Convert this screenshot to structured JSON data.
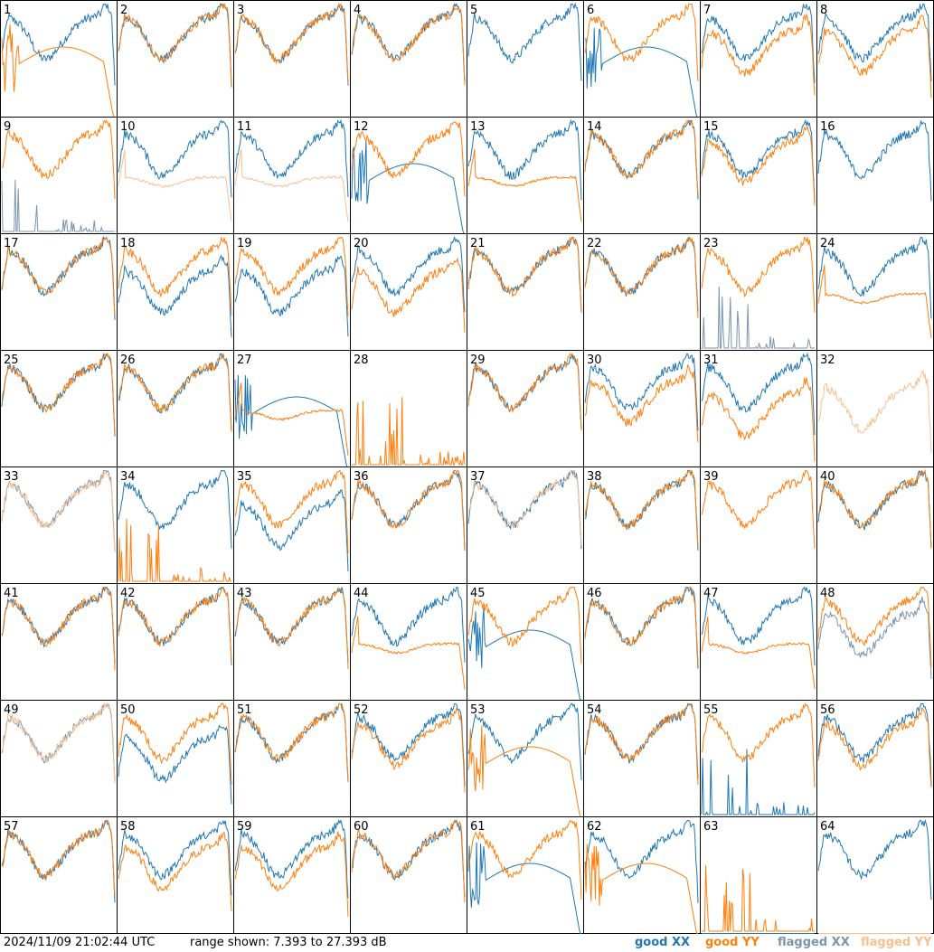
{
  "colors": {
    "good_xx": "#1f77b4",
    "good_yy": "#ff7f0e",
    "flagged_xx": "#7a96ad",
    "flagged_yy": "#f9bf8f",
    "border": "#000000"
  },
  "footer": {
    "timestamp": "2024/11/09 21:02:44 UTC",
    "range": "range shown: 7.393 to 27.393 dB"
  },
  "legend": {
    "good_xx": "good XX",
    "good_yy": "good YY",
    "flagged_xx": "flagged XX",
    "flagged_yy": "flagged YY"
  },
  "chart_data": {
    "type": "line",
    "layout": "8x8 small multiples",
    "range_db": [
      7.393,
      27.393
    ],
    "panels": [
      {
        "label": "1",
        "xx": "good",
        "yy": "good",
        "xx_shape": "normal",
        "yy_shape": "dipcurve",
        "off": [
          0,
          0
        ]
      },
      {
        "label": "2",
        "xx": "good",
        "yy": "good",
        "xx_shape": "normal",
        "yy_shape": "normal",
        "off": [
          0,
          0
        ]
      },
      {
        "label": "3",
        "xx": "good",
        "yy": "good",
        "xx_shape": "normal",
        "yy_shape": "normal",
        "off": [
          0,
          0
        ]
      },
      {
        "label": "4",
        "xx": "good",
        "yy": "good",
        "xx_shape": "normal",
        "yy_shape": "normal",
        "off": [
          0,
          0
        ]
      },
      {
        "label": "5",
        "xx": "good",
        "yy": "flagged",
        "xx_shape": "normal",
        "yy_shape": "dead",
        "off": [
          0,
          0
        ]
      },
      {
        "label": "6",
        "xx": "good",
        "yy": "good",
        "xx_shape": "dipcurve",
        "yy_shape": "normal",
        "off": [
          0,
          0
        ]
      },
      {
        "label": "7",
        "xx": "good",
        "yy": "good",
        "xx_shape": "normal",
        "yy_shape": "normal",
        "off": [
          0,
          2
        ]
      },
      {
        "label": "8",
        "xx": "good",
        "yy": "good",
        "xx_shape": "normal",
        "yy_shape": "normal",
        "off": [
          0,
          2
        ]
      },
      {
        "label": "9",
        "xx": "flagged",
        "yy": "good",
        "xx_shape": "spiky",
        "yy_shape": "normal",
        "off": [
          0,
          0
        ]
      },
      {
        "label": "10",
        "xx": "good",
        "yy": "flagged",
        "xx_shape": "normal",
        "yy_shape": "flat",
        "off": [
          0,
          1
        ]
      },
      {
        "label": "11",
        "xx": "good",
        "yy": "flagged",
        "xx_shape": "normal",
        "yy_shape": "flat",
        "off": [
          0,
          2
        ]
      },
      {
        "label": "12",
        "xx": "good",
        "yy": "good",
        "xx_shape": "dipcurve",
        "yy_shape": "normal",
        "off": [
          0,
          0
        ]
      },
      {
        "label": "13",
        "xx": "good",
        "yy": "good",
        "xx_shape": "normal",
        "yy_shape": "flat",
        "off": [
          0,
          2
        ]
      },
      {
        "label": "14",
        "xx": "good",
        "yy": "good",
        "xx_shape": "normal",
        "yy_shape": "normal",
        "off": [
          0,
          0
        ]
      },
      {
        "label": "15",
        "xx": "good",
        "yy": "good",
        "xx_shape": "normal",
        "yy_shape": "normal",
        "off": [
          0,
          1
        ]
      },
      {
        "label": "16",
        "xx": "good",
        "yy": "flagged",
        "xx_shape": "normal",
        "yy_shape": "dead",
        "off": [
          0,
          0
        ]
      },
      {
        "label": "17",
        "xx": "good",
        "yy": "good",
        "xx_shape": "normal",
        "yy_shape": "normal",
        "off": [
          0,
          0
        ]
      },
      {
        "label": "18",
        "xx": "good",
        "yy": "good",
        "xx_shape": "normal",
        "yy_shape": "normal",
        "off": [
          3,
          0
        ]
      },
      {
        "label": "19",
        "xx": "good",
        "yy": "good",
        "xx_shape": "normal",
        "yy_shape": "normal",
        "off": [
          3,
          0
        ]
      },
      {
        "label": "20",
        "xx": "good",
        "yy": "good",
        "xx_shape": "normal",
        "yy_shape": "normal",
        "off": [
          0,
          3
        ]
      },
      {
        "label": "21",
        "xx": "good",
        "yy": "good",
        "xx_shape": "normal",
        "yy_shape": "normal",
        "off": [
          0,
          0
        ]
      },
      {
        "label": "22",
        "xx": "good",
        "yy": "good",
        "xx_shape": "normal",
        "yy_shape": "normal",
        "off": [
          0,
          0
        ]
      },
      {
        "label": "23",
        "xx": "flagged",
        "yy": "good",
        "xx_shape": "spiky",
        "yy_shape": "normal",
        "off": [
          0,
          0
        ]
      },
      {
        "label": "24",
        "xx": "good",
        "yy": "good",
        "xx_shape": "normal",
        "yy_shape": "flat",
        "off": [
          0,
          2
        ]
      },
      {
        "label": "25",
        "xx": "good",
        "yy": "good",
        "xx_shape": "normal",
        "yy_shape": "normal",
        "off": [
          0,
          0
        ]
      },
      {
        "label": "26",
        "xx": "good",
        "yy": "good",
        "xx_shape": "normal",
        "yy_shape": "normal",
        "off": [
          0,
          0
        ]
      },
      {
        "label": "27",
        "xx": "good",
        "yy": "good",
        "xx_shape": "dipcurve",
        "yy_shape": "flat",
        "off": [
          0,
          0
        ]
      },
      {
        "label": "28",
        "xx": "good",
        "yy": "good",
        "xx_shape": "dead",
        "yy_shape": "spiky",
        "off": [
          0,
          0
        ]
      },
      {
        "label": "29",
        "xx": "good",
        "yy": "good",
        "xx_shape": "normal",
        "yy_shape": "normal",
        "off": [
          0,
          0
        ]
      },
      {
        "label": "30",
        "xx": "good",
        "yy": "good",
        "xx_shape": "normal",
        "yy_shape": "normal",
        "off": [
          0,
          2
        ]
      },
      {
        "label": "31",
        "xx": "good",
        "yy": "good",
        "xx_shape": "normal",
        "yy_shape": "normal",
        "off": [
          0,
          4
        ]
      },
      {
        "label": "32",
        "xx": "flagged",
        "yy": "flagged",
        "xx_shape": "dead",
        "yy_shape": "normal",
        "off": [
          0,
          3
        ]
      },
      {
        "label": "33",
        "xx": "flagged",
        "yy": "flagged",
        "xx_shape": "normal",
        "yy_shape": "normal",
        "off": [
          0,
          0
        ]
      },
      {
        "label": "34",
        "xx": "good",
        "yy": "good",
        "xx_shape": "normal",
        "yy_shape": "spiky",
        "off": [
          0,
          0
        ]
      },
      {
        "label": "35",
        "xx": "good",
        "yy": "good",
        "xx_shape": "normal",
        "yy_shape": "normal",
        "off": [
          3,
          0
        ]
      },
      {
        "label": "36",
        "xx": "good",
        "yy": "good",
        "xx_shape": "normal",
        "yy_shape": "normal",
        "off": [
          0,
          0
        ]
      },
      {
        "label": "37",
        "xx": "good",
        "yy": "flagged",
        "xx_shape": "normal",
        "yy_shape": "normal",
        "off": [
          0,
          0
        ]
      },
      {
        "label": "38",
        "xx": "good",
        "yy": "good",
        "xx_shape": "normal",
        "yy_shape": "normal",
        "off": [
          0,
          0
        ]
      },
      {
        "label": "39",
        "xx": "good",
        "yy": "good",
        "xx_shape": "dead",
        "yy_shape": "normal",
        "off": [
          0,
          0
        ]
      },
      {
        "label": "40",
        "xx": "good",
        "yy": "good",
        "xx_shape": "normal",
        "yy_shape": "normal",
        "off": [
          0,
          0
        ]
      },
      {
        "label": "41",
        "xx": "good",
        "yy": "good",
        "xx_shape": "normal",
        "yy_shape": "normal",
        "off": [
          0,
          0
        ]
      },
      {
        "label": "42",
        "xx": "good",
        "yy": "good",
        "xx_shape": "normal",
        "yy_shape": "normal",
        "off": [
          0,
          0
        ]
      },
      {
        "label": "43",
        "xx": "good",
        "yy": "good",
        "xx_shape": "normal",
        "yy_shape": "normal",
        "off": [
          0,
          0
        ]
      },
      {
        "label": "44",
        "xx": "good",
        "yy": "good",
        "xx_shape": "normal",
        "yy_shape": "flat",
        "off": [
          0,
          2
        ]
      },
      {
        "label": "45",
        "xx": "good",
        "yy": "good",
        "xx_shape": "dipcurve",
        "yy_shape": "normal",
        "off": [
          0,
          0
        ]
      },
      {
        "label": "46",
        "xx": "good",
        "yy": "good",
        "xx_shape": "normal",
        "yy_shape": "normal",
        "off": [
          0,
          0
        ]
      },
      {
        "label": "47",
        "xx": "good",
        "yy": "good",
        "xx_shape": "normal",
        "yy_shape": "flat",
        "off": [
          0,
          2
        ]
      },
      {
        "label": "48",
        "xx": "flagged",
        "yy": "good",
        "xx_shape": "normal",
        "yy_shape": "normal",
        "off": [
          2,
          0
        ]
      },
      {
        "label": "49",
        "xx": "flagged",
        "yy": "flagged",
        "xx_shape": "normal",
        "yy_shape": "normal",
        "off": [
          0,
          0
        ]
      },
      {
        "label": "50",
        "xx": "good",
        "yy": "good",
        "xx_shape": "normal",
        "yy_shape": "normal",
        "off": [
          3,
          0
        ]
      },
      {
        "label": "51",
        "xx": "good",
        "yy": "good",
        "xx_shape": "normal",
        "yy_shape": "normal",
        "off": [
          0,
          0
        ]
      },
      {
        "label": "52",
        "xx": "good",
        "yy": "good",
        "xx_shape": "normal",
        "yy_shape": "normal",
        "off": [
          0,
          1
        ]
      },
      {
        "label": "53",
        "xx": "good",
        "yy": "good",
        "xx_shape": "normal",
        "yy_shape": "dipcurve",
        "off": [
          0,
          0
        ]
      },
      {
        "label": "54",
        "xx": "good",
        "yy": "good",
        "xx_shape": "normal",
        "yy_shape": "normal",
        "off": [
          0,
          0
        ]
      },
      {
        "label": "55",
        "xx": "good",
        "yy": "good",
        "xx_shape": "spiky",
        "yy_shape": "normal",
        "off": [
          0,
          0
        ]
      },
      {
        "label": "56",
        "xx": "good",
        "yy": "good",
        "xx_shape": "normal",
        "yy_shape": "normal",
        "off": [
          0,
          1
        ]
      },
      {
        "label": "57",
        "xx": "good",
        "yy": "good",
        "xx_shape": "normal",
        "yy_shape": "normal",
        "off": [
          0,
          0
        ]
      },
      {
        "label": "58",
        "xx": "good",
        "yy": "good",
        "xx_shape": "normal",
        "yy_shape": "normal",
        "off": [
          0,
          2
        ]
      },
      {
        "label": "59",
        "xx": "good",
        "yy": "good",
        "xx_shape": "normal",
        "yy_shape": "normal",
        "off": [
          0,
          2
        ]
      },
      {
        "label": "60",
        "xx": "good",
        "yy": "good",
        "xx_shape": "normal",
        "yy_shape": "normal",
        "off": [
          0,
          0
        ]
      },
      {
        "label": "61",
        "xx": "good",
        "yy": "good",
        "xx_shape": "dipcurve",
        "yy_shape": "normal",
        "off": [
          0,
          0
        ]
      },
      {
        "label": "62",
        "xx": "good",
        "yy": "good",
        "xx_shape": "normal",
        "yy_shape": "dipcurve",
        "off": [
          0,
          0
        ]
      },
      {
        "label": "63",
        "xx": "good",
        "yy": "good",
        "xx_shape": "dead",
        "yy_shape": "spiky",
        "off": [
          0,
          0
        ]
      },
      {
        "label": "64",
        "xx": "good",
        "yy": "flagged",
        "xx_shape": "normal",
        "yy_shape": "dead",
        "off": [
          0,
          0
        ]
      }
    ]
  }
}
